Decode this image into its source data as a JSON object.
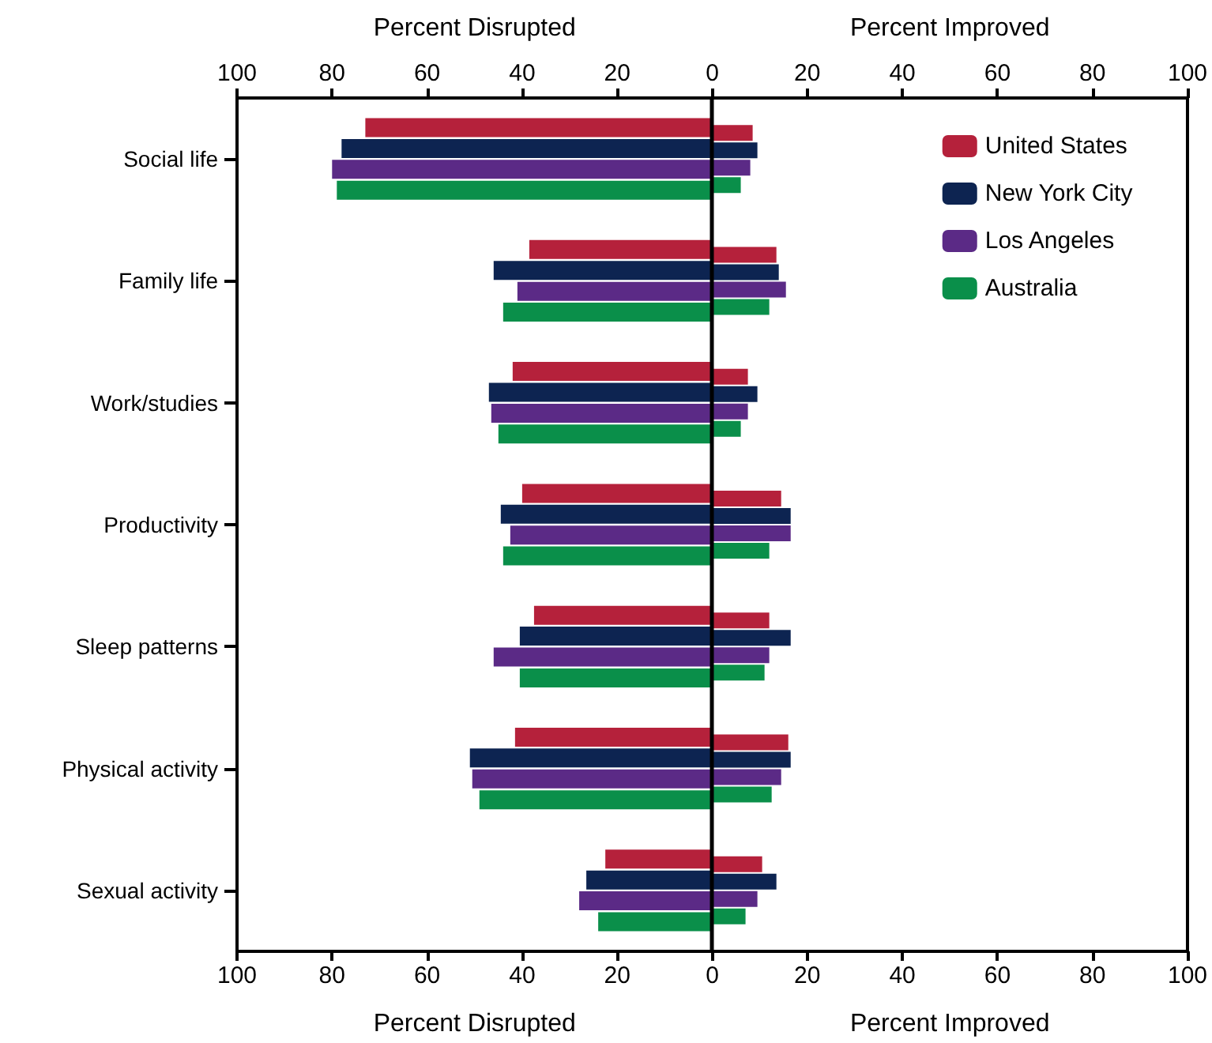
{
  "chart_data": {
    "type": "bar",
    "orientation": "horizontal",
    "categories": [
      "Social life",
      "Family life",
      "Work/studies",
      "Productivity",
      "Sleep patterns",
      "Physical activity",
      "Sexual activity"
    ],
    "series": [
      {
        "name": "United States",
        "color": "#b5213b",
        "values": [
          -73,
          -38.5,
          -42,
          -40,
          -37.5,
          -41.5,
          -22.5
        ]
      },
      {
        "color": "#b5213b",
        "values": [
          8.5,
          13.5,
          7.5,
          14.5,
          12,
          16,
          10.5
        ]
      },
      {
        "name": "New York City",
        "color": "#0d2451",
        "values": [
          -78,
          -46,
          -47,
          -44.5,
          -40.5,
          -51,
          -26.5
        ]
      },
      {
        "color": "#0d2451",
        "values": [
          9.5,
          14,
          9.5,
          16.5,
          16.5,
          16.5,
          13.5
        ]
      },
      {
        "name": "Los Angeles",
        "color": "#5b2a86",
        "values": [
          -80,
          -41,
          -46.5,
          -42.5,
          -46,
          -50.5,
          -28
        ]
      },
      {
        "color": "#5b2a86",
        "values": [
          8,
          15.5,
          7.5,
          16.5,
          12,
          14.5,
          9.5
        ]
      },
      {
        "name": "Australia",
        "color": "#0a8f4a",
        "values": [
          -79,
          -44,
          -45,
          -44,
          -40.5,
          -49,
          -24
        ]
      },
      {
        "color": "#0a8f4a",
        "values": [
          6,
          12,
          6,
          12,
          11,
          12.5,
          7
        ]
      }
    ],
    "xlim": [
      -100,
      100
    ],
    "xticks": [
      {
        "value": -100,
        "label": "100"
      },
      {
        "value": -80,
        "label": "80"
      },
      {
        "value": -60,
        "label": "60"
      },
      {
        "value": -40,
        "label": "40"
      },
      {
        "value": -20,
        "label": "20"
      },
      0,
      20,
      40,
      60,
      80,
      100
    ],
    "x2lim": [
      -100,
      100
    ],
    "x2ticks": [
      {
        "value": -100,
        "label": "100"
      },
      {
        "value": -80,
        "label": "80"
      },
      {
        "value": -60,
        "label": "60"
      },
      {
        "value": -40,
        "label": "40"
      },
      {
        "value": -20,
        "label": "20"
      },
      0,
      20,
      40,
      60,
      80,
      100
    ],
    "xlabel": "Percent Disrupted",
    "x2label": "Percent Disrupted",
    "annotations": [
      "Percent Improved",
      "Percent Improved"
    ],
    "ref_lines": [
      {
        "axis": "x",
        "value": 0,
        "color": "#000000"
      }
    ],
    "grid": false,
    "legend": "top right"
  }
}
